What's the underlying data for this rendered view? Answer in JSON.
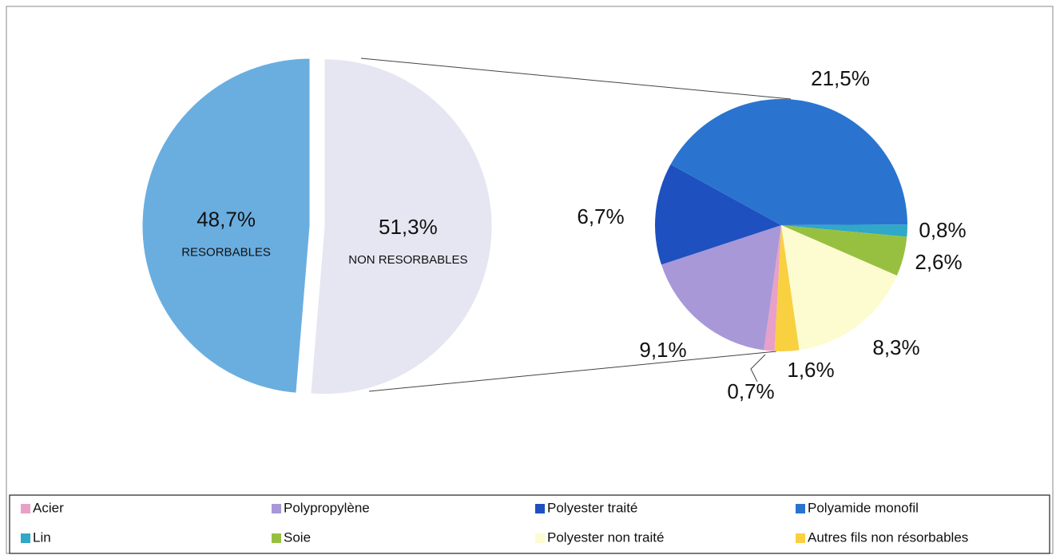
{
  "chart_data": [
    {
      "type": "pie",
      "categories": [
        "RESORBABLES",
        "NON RESORBABLES"
      ],
      "values": [
        48.7,
        51.3
      ],
      "value_labels": [
        "48,7%",
        "51,3%"
      ],
      "colors": [
        "#6aaee0",
        "#e6e6f2"
      ]
    },
    {
      "type": "pie",
      "categories": [
        "Acier",
        "Polypropylène",
        "Polyester traité",
        "Polyamide monofil",
        "Lin",
        "Soie",
        "Polyester non traité",
        "Autres fils non résorbables"
      ],
      "values": [
        0.7,
        9.1,
        6.7,
        21.5,
        0.8,
        2.6,
        8.3,
        1.6
      ],
      "value_labels": [
        "0,7%",
        "9,1%",
        "6,7%",
        "21,5%",
        "0,8%",
        "2,6%",
        "8,3%",
        "1,6%"
      ],
      "colors": [
        "#e8a0c8",
        "#a898d8",
        "#1e50c0",
        "#2a74d0",
        "#30a8c8",
        "#98c040",
        "#fcfcd0",
        "#f8d040"
      ]
    }
  ]
}
